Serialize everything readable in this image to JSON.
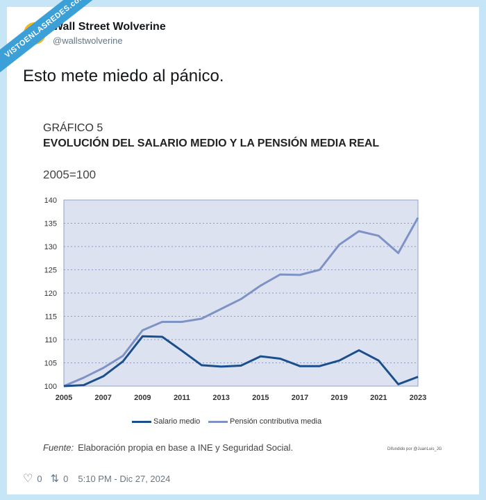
{
  "watermark": "VISTOENLASREDES.com",
  "author": {
    "name": "Wall Street Wolverine",
    "handle": "@wallstwolverine"
  },
  "tweet_text": "Esto mete miedo al pánico.",
  "chart_data": {
    "type": "line",
    "title": "EVOLUCIÓN DEL SALARIO MEDIO Y LA PENSIÓN MEDIA REAL",
    "subtitle": "GRÁFICO 5",
    "unit_label": "2005=100",
    "x": [
      2005,
      2006,
      2007,
      2008,
      2009,
      2010,
      2011,
      2012,
      2013,
      2014,
      2015,
      2016,
      2017,
      2018,
      2019,
      2020,
      2021,
      2022,
      2023
    ],
    "x_tick_labels": [
      "2005",
      "2007",
      "2009",
      "2011",
      "2013",
      "2015",
      "2017",
      "2019",
      "2021",
      "2023"
    ],
    "y_tick_labels": [
      "100",
      "105",
      "110",
      "115",
      "120",
      "125",
      "130",
      "135",
      "140"
    ],
    "ylim": [
      100,
      140
    ],
    "grid": true,
    "legend": "bottom",
    "series": [
      {
        "name": "Salario medio",
        "color": "#1a4e8c",
        "values": [
          100,
          100.2,
          102.1,
          105.3,
          110.7,
          110.6,
          107.6,
          104.5,
          104.2,
          104.4,
          106.4,
          105.9,
          104.3,
          104.3,
          105.5,
          107.7,
          105.5,
          100.4,
          102.0
        ]
      },
      {
        "name": "Pensión contributiva media",
        "color": "#7e92c6",
        "values": [
          100,
          101.8,
          103.9,
          106.5,
          112.0,
          113.8,
          113.8,
          114.5,
          116.6,
          118.7,
          121.6,
          124.0,
          123.9,
          125.0,
          130.4,
          133.3,
          132.3,
          128.6,
          136.2
        ]
      }
    ],
    "source_label": "Fuente:",
    "source": "Elaboración propia en base a INE y Seguridad Social.",
    "credit": "Difundido por @JuanLuis_JG"
  },
  "footer": {
    "likes": "0",
    "retweets": "0",
    "timestamp": "5:10 PM - Dic 27, 2024"
  }
}
